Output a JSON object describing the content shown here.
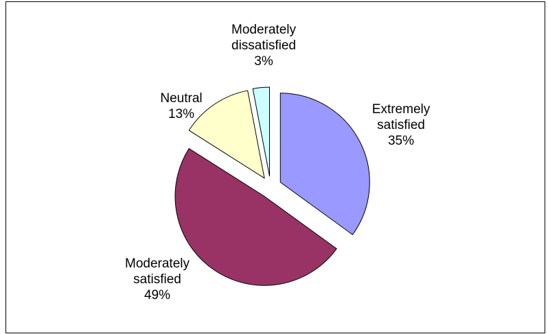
{
  "chart_data": {
    "type": "pie",
    "title": "",
    "slices": [
      {
        "label_lines": [
          "Extremely",
          "satisfied"
        ],
        "value": 35,
        "percent_text": "35%",
        "color": "#9999ff",
        "exploded": true
      },
      {
        "label_lines": [
          "Moderately",
          "satisfied"
        ],
        "value": 49,
        "percent_text": "49%",
        "color": "#993366",
        "exploded": true
      },
      {
        "label_lines": [
          "Neutral"
        ],
        "value": 13,
        "percent_text": "13%",
        "color": "#ffffcc",
        "exploded": true
      },
      {
        "label_lines": [
          "Moderately",
          "dissatisfied"
        ],
        "value": 3,
        "percent_text": "3%",
        "color": "#ccffff",
        "exploded": true
      }
    ],
    "start_angle_deg": 0,
    "direction": "clockwise",
    "outline_color": "#000000",
    "legend": "none"
  }
}
